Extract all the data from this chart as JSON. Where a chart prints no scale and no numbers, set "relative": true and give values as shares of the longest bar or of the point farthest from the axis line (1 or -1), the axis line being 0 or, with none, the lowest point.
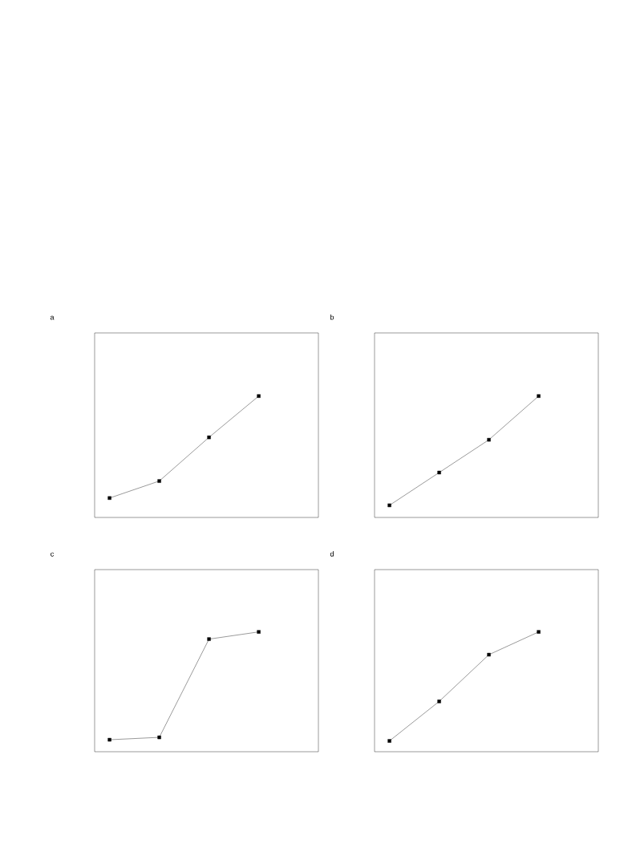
{
  "chart_data": [
    {
      "type": "line",
      "title": "a",
      "categories": [
        null,
        null,
        null,
        null
      ],
      "values": [
        0.16,
        0.3,
        0.66,
        1
      ],
      "relative": true,
      "color": "#000000",
      "marker": "square"
    },
    {
      "type": "line",
      "title": "b",
      "categories": [
        null,
        null,
        null,
        null
      ],
      "values": [
        0.1,
        0.37,
        0.64,
        1
      ],
      "relative": true,
      "color": "#000000",
      "marker": "square"
    },
    {
      "type": "line",
      "title": "c",
      "categories": [
        null,
        null,
        null,
        null
      ],
      "values": [
        0.1,
        0.12,
        0.94,
        1
      ],
      "relative": true,
      "color": "#000000",
      "marker": "square"
    },
    {
      "type": "line",
      "title": "d",
      "categories": [
        null,
        null,
        null,
        null
      ],
      "values": [
        0.09,
        0.42,
        0.81,
        1
      ],
      "relative": true,
      "color": "#000000",
      "marker": "square"
    }
  ]
}
